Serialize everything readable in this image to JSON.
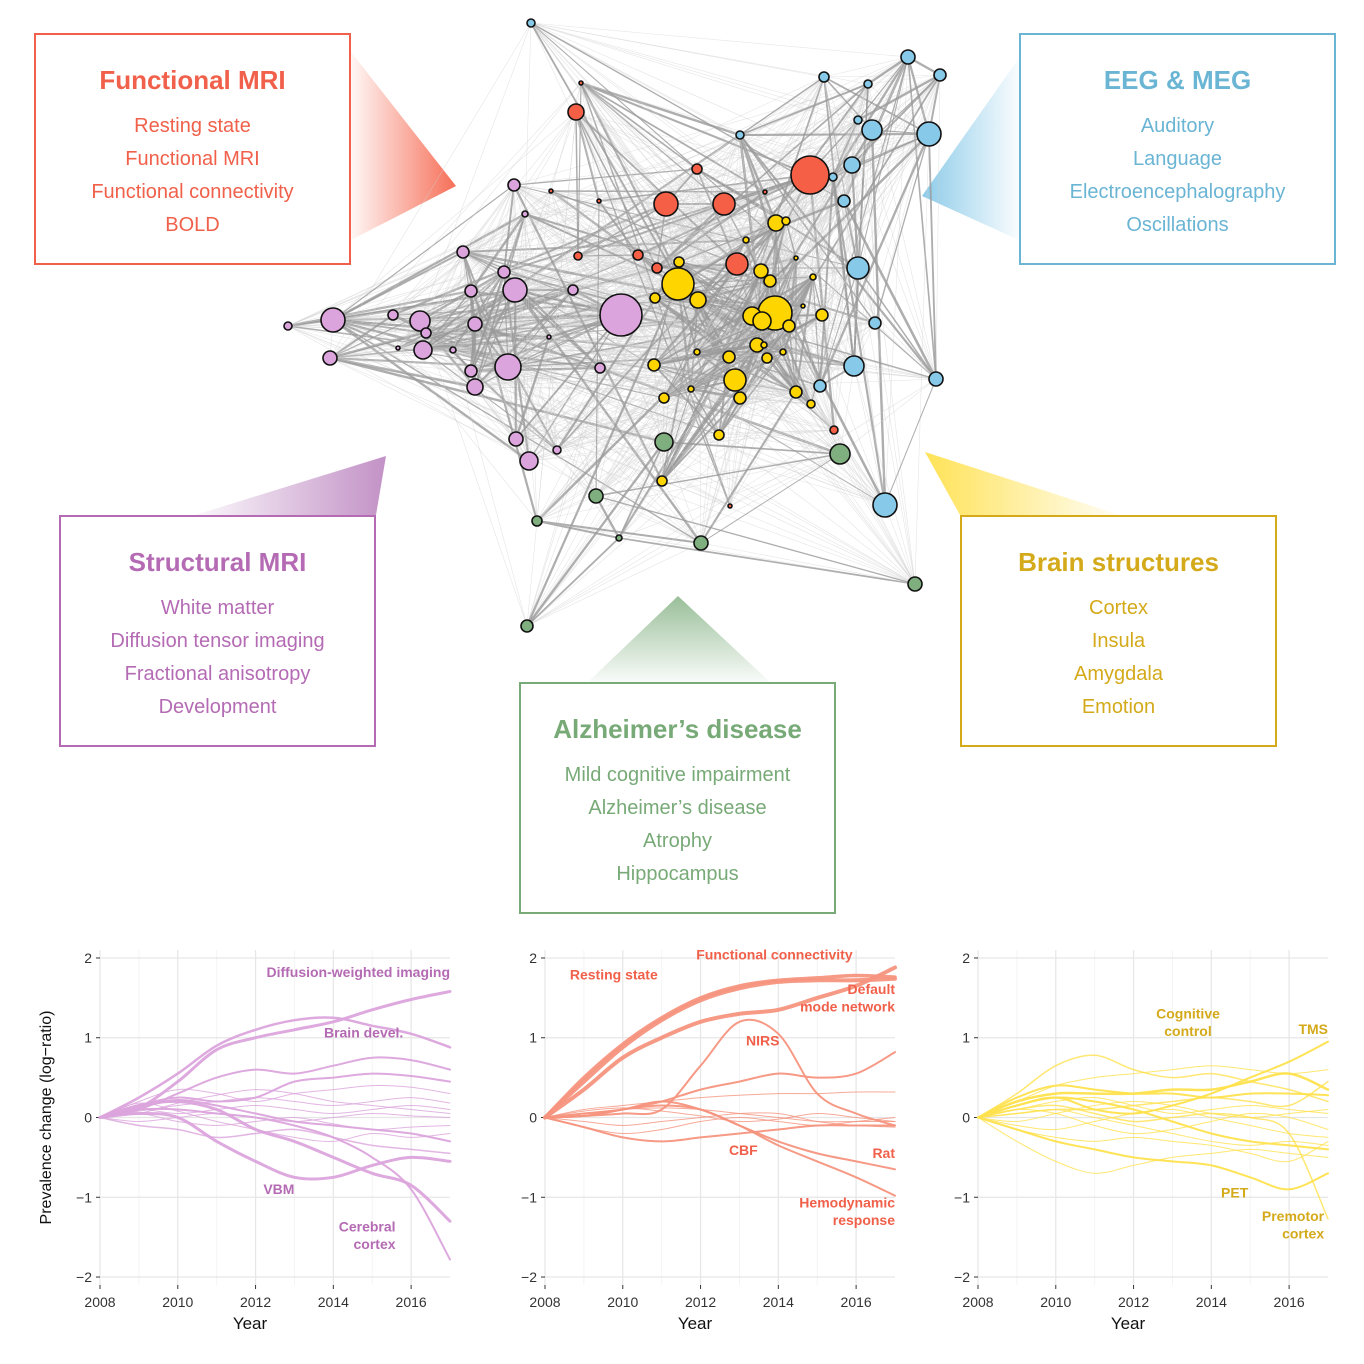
{
  "clusters": {
    "fmri": {
      "title": "Functional MRI",
      "color": "#f0604a",
      "terms": [
        "Resting state",
        "Functional MRI",
        "Functional connectivity",
        "BOLD"
      ]
    },
    "eeg": {
      "title": "EEG & MEG",
      "color": "#6ab4d4",
      "terms": [
        "Auditory",
        "Language",
        "Electroencephalography",
        "Oscillations"
      ]
    },
    "smri": {
      "title": "Structural MRI",
      "color": "#b46bb4",
      "terms": [
        "White matter",
        "Diffusion tensor imaging",
        "Fractional anisotropy",
        "Development"
      ]
    },
    "brain": {
      "title": "Brain structures",
      "color": "#d4aa1a",
      "terms": [
        "Cortex",
        "Insula",
        "Amygdala",
        "Emotion"
      ]
    },
    "ad": {
      "title": "Alzheimer’s disease",
      "color": "#78aa78",
      "terms": [
        "Mild cognitive impairment",
        "Alzheimer’s disease",
        "Atrophy",
        "Hippocampus"
      ]
    }
  },
  "node_colors": {
    "fmri": "#f55f45",
    "eeg": "#87c9e8",
    "smri": "#dba4dc",
    "brain": "#ffd500",
    "ad": "#7fae7f"
  },
  "chart_data": [
    {
      "type": "line",
      "title": "",
      "xlabel": "Year",
      "ylabel": "Prevalence change (log−ratio)",
      "xlim": [
        2008,
        2017
      ],
      "ylim": [
        -2.1,
        2.1
      ],
      "xticks": [
        2008,
        2010,
        2012,
        2014,
        2016
      ],
      "yticks": [
        -2,
        -1,
        0,
        1,
        2
      ],
      "color": "#dba4dc",
      "label_color": "#b46bb4",
      "x": [
        2008,
        2009,
        2010,
        2011,
        2012,
        2013,
        2014,
        2015,
        2016,
        2017
      ],
      "series": [
        {
          "name": "Diffusion-weighted imaging",
          "width": 3,
          "values": [
            0,
            0.12,
            0.45,
            0.85,
            1.0,
            1.1,
            1.2,
            1.35,
            1.48,
            1.58
          ]
        },
        {
          "name": "Brain devel.",
          "width": 2.5,
          "values": [
            0,
            0.25,
            0.55,
            0.9,
            1.1,
            1.22,
            1.25,
            1.15,
            1.05,
            0.88
          ]
        },
        {
          "name": "VBM",
          "width": 3,
          "values": [
            0,
            0.05,
            0.0,
            -0.3,
            -0.55,
            -0.75,
            -0.75,
            -0.6,
            -0.5,
            -0.55
          ]
        },
        {
          "name": "Cerebral cortex",
          "width": 2,
          "values": [
            0,
            0.1,
            0.1,
            0.05,
            0.0,
            -0.1,
            -0.25,
            -0.5,
            -0.9,
            -1.78
          ]
        },
        {
          "name": "",
          "width": 3,
          "values": [
            0,
            0.15,
            0.2,
            0.1,
            -0.15,
            -0.3,
            -0.5,
            -0.7,
            -0.85,
            -1.3
          ]
        },
        {
          "name": "",
          "width": 2,
          "values": [
            0,
            0.1,
            0.3,
            0.5,
            0.6,
            0.55,
            0.65,
            0.75,
            0.72,
            0.6
          ]
        },
        {
          "name": "",
          "width": 2,
          "values": [
            0,
            0.15,
            0.25,
            0.2,
            0.25,
            0.45,
            0.5,
            0.55,
            0.52,
            0.45
          ]
        },
        {
          "name": "",
          "width": 1,
          "values": [
            0,
            0.2,
            0.35,
            0.3,
            0.2,
            0.3,
            0.35,
            0.4,
            0.38,
            0.3
          ]
        },
        {
          "name": "",
          "width": 1,
          "values": [
            0,
            0.08,
            0.15,
            0.2,
            0.25,
            0.2,
            0.15,
            0.2,
            0.25,
            0.18
          ]
        },
        {
          "name": "",
          "width": 1,
          "values": [
            0,
            0.1,
            0.05,
            0.1,
            0.15,
            0.1,
            0.05,
            0.1,
            0.15,
            0.1
          ]
        },
        {
          "name": "",
          "width": 1,
          "values": [
            0,
            -0.05,
            0.0,
            0.05,
            0.0,
            -0.05,
            0.0,
            0.05,
            0.02,
            0.0
          ]
        },
        {
          "name": "",
          "width": 1,
          "values": [
            0,
            0.05,
            -0.05,
            -0.1,
            -0.05,
            0.0,
            -0.08,
            -0.15,
            -0.12,
            -0.1
          ]
        },
        {
          "name": "",
          "width": 2,
          "values": [
            0,
            0.12,
            0.22,
            0.15,
            0.05,
            -0.05,
            -0.1,
            -0.15,
            -0.2,
            -0.3
          ]
        },
        {
          "name": "",
          "width": 1.5,
          "values": [
            0,
            -0.1,
            -0.15,
            -0.25,
            -0.2,
            -0.15,
            -0.25,
            -0.35,
            -0.4,
            -0.45
          ]
        },
        {
          "name": "",
          "width": 1,
          "values": [
            0,
            0.18,
            0.08,
            -0.05,
            -0.15,
            -0.25,
            -0.3,
            -0.2,
            -0.25,
            -0.2
          ]
        },
        {
          "name": "",
          "width": 1,
          "values": [
            0,
            0.05,
            0.18,
            0.28,
            0.35,
            0.3,
            0.2,
            0.15,
            0.1,
            0.05
          ]
        }
      ],
      "annotations": [
        {
          "text": "Diffusion-weighted imaging",
          "x": 2017,
          "y": 1.76,
          "anchor": "end"
        },
        {
          "text": "Brain devel.",
          "x": 2015.8,
          "y": 1.0,
          "anchor": "end"
        },
        {
          "text": "VBM",
          "x": 2012.6,
          "y": -0.96,
          "anchor": "middle"
        },
        {
          "text": "Cerebral",
          "x": 2015.6,
          "y": -1.43,
          "anchor": "end"
        },
        {
          "text": "cortex",
          "x": 2015.6,
          "y": -1.65,
          "anchor": "end"
        }
      ]
    },
    {
      "type": "line",
      "title": "",
      "xlabel": "Year",
      "ylabel": "",
      "xlim": [
        2008,
        2017
      ],
      "ylim": [
        -2.1,
        2.1
      ],
      "xticks": [
        2008,
        2010,
        2012,
        2014,
        2016
      ],
      "yticks": [
        -2,
        -1,
        0,
        1,
        2
      ],
      "color": "#f5937e",
      "label_color": "#f0604a",
      "x": [
        2008,
        2009,
        2010,
        2011,
        2012,
        2013,
        2014,
        2015,
        2016,
        2017
      ],
      "series": [
        {
          "name": "Resting state",
          "width": 4,
          "values": [
            0,
            0.45,
            0.88,
            1.22,
            1.47,
            1.62,
            1.7,
            1.72,
            1.72,
            1.74
          ]
        },
        {
          "name": "Functional connectivity",
          "width": 4,
          "values": [
            0,
            0.35,
            0.75,
            1.0,
            1.2,
            1.3,
            1.35,
            1.5,
            1.65,
            1.88
          ]
        },
        {
          "name": "Default mode network",
          "width": 3.5,
          "values": [
            0,
            0.5,
            0.92,
            1.25,
            1.5,
            1.65,
            1.72,
            1.75,
            1.78,
            1.76
          ]
        },
        {
          "name": "NIRS",
          "width": 2,
          "values": [
            0,
            0.02,
            0.05,
            0.1,
            0.65,
            1.2,
            1.05,
            0.3,
            0.05,
            -0.1
          ]
        },
        {
          "name": "CBF",
          "width": 2,
          "values": [
            0,
            -0.12,
            -0.25,
            -0.3,
            -0.25,
            -0.2,
            -0.15,
            -0.1,
            -0.1,
            -0.1
          ]
        },
        {
          "name": "Rat",
          "width": 2,
          "values": [
            0,
            0.02,
            0.1,
            0.15,
            0.1,
            -0.1,
            -0.3,
            -0.45,
            -0.55,
            -0.65
          ]
        },
        {
          "name": "Hemodynamic response",
          "width": 2,
          "values": [
            0,
            0.05,
            0.1,
            0.2,
            0.1,
            -0.1,
            -0.35,
            -0.55,
            -0.75,
            -0.98
          ]
        },
        {
          "name": "",
          "width": 2,
          "values": [
            0,
            0.02,
            0.1,
            0.2,
            0.35,
            0.45,
            0.55,
            0.5,
            0.55,
            0.82
          ]
        },
        {
          "name": "",
          "width": 1,
          "values": [
            0,
            0.1,
            0.15,
            0.2,
            0.25,
            0.28,
            0.3,
            0.3,
            0.32,
            0.32
          ]
        },
        {
          "name": "",
          "width": 1,
          "values": [
            0,
            0.05,
            0.1,
            0.12,
            0.1,
            0.05,
            0.0,
            -0.05,
            -0.05,
            -0.05
          ]
        },
        {
          "name": "",
          "width": 1,
          "values": [
            0,
            -0.05,
            -0.1,
            -0.05,
            0.0,
            0.05,
            0.05,
            -0.05,
            -0.1,
            -0.12
          ]
        },
        {
          "name": "",
          "width": 1,
          "values": [
            0,
            0.08,
            0.12,
            0.08,
            0.02,
            -0.05,
            -0.02,
            0.05,
            0.0,
            -0.05
          ]
        },
        {
          "name": "",
          "width": 1,
          "values": [
            0,
            -0.12,
            -0.2,
            -0.15,
            -0.05,
            0.0,
            -0.05,
            -0.1,
            -0.05,
            0.0
          ]
        }
      ],
      "annotations": [
        {
          "text": "Functional connectivity",
          "x": 2013.9,
          "y": 1.98,
          "anchor": "middle"
        },
        {
          "text": "Resting state",
          "x": 2010.9,
          "y": 1.73,
          "anchor": "end"
        },
        {
          "text": "Default",
          "x": 2017,
          "y": 1.55,
          "anchor": "end"
        },
        {
          "text": "mode network",
          "x": 2017,
          "y": 1.33,
          "anchor": "end"
        },
        {
          "text": "NIRS",
          "x": 2013.6,
          "y": 0.9,
          "anchor": "middle"
        },
        {
          "text": "CBF",
          "x": 2013.1,
          "y": -0.47,
          "anchor": "middle"
        },
        {
          "text": "Rat",
          "x": 2017,
          "y": -0.51,
          "anchor": "end"
        },
        {
          "text": "Hemodynamic",
          "x": 2017,
          "y": -1.13,
          "anchor": "end"
        },
        {
          "text": "response",
          "x": 2017,
          "y": -1.35,
          "anchor": "end"
        }
      ]
    },
    {
      "type": "line",
      "title": "",
      "xlabel": "Year",
      "ylabel": "",
      "xlim": [
        2008,
        2017
      ],
      "ylim": [
        -2.1,
        2.1
      ],
      "xticks": [
        2008,
        2010,
        2012,
        2014,
        2016
      ],
      "yticks": [
        -2,
        -1,
        0,
        1,
        2
      ],
      "color": "#ffe14d",
      "label_color": "#d4aa1a",
      "x": [
        2008,
        2009,
        2010,
        2011,
        2012,
        2013,
        2014,
        2015,
        2016,
        2017
      ],
      "series": [
        {
          "name": "Cognitive control",
          "width": 2.5,
          "values": [
            0,
            0.2,
            0.3,
            0.3,
            0.3,
            0.35,
            0.35,
            0.45,
            0.55,
            0.35
          ]
        },
        {
          "name": "TMS",
          "width": 2,
          "values": [
            0,
            0.15,
            0.25,
            0.1,
            0.05,
            0.15,
            0.3,
            0.5,
            0.7,
            0.95
          ]
        },
        {
          "name": "PET",
          "width": 2,
          "values": [
            0,
            -0.15,
            -0.3,
            -0.4,
            -0.5,
            -0.55,
            -0.6,
            -0.75,
            -0.9,
            -0.7
          ]
        },
        {
          "name": "Premotor cortex",
          "width": 1.5,
          "values": [
            0,
            0.1,
            0.15,
            0.05,
            -0.05,
            0.0,
            0.05,
            0.0,
            -0.2,
            -1.27
          ]
        },
        {
          "name": "",
          "width": 1.5,
          "values": [
            0,
            0.3,
            0.65,
            0.78,
            0.6,
            0.5,
            0.55,
            0.45,
            0.35,
            0.2
          ]
        },
        {
          "name": "",
          "width": 2,
          "values": [
            0,
            0.25,
            0.4,
            0.35,
            0.3,
            0.3,
            0.25,
            0.3,
            0.3,
            0.28
          ]
        },
        {
          "name": "",
          "width": 1,
          "values": [
            0,
            -0.3,
            -0.55,
            -0.7,
            -0.6,
            -0.5,
            -0.45,
            -0.4,
            -0.45,
            -0.5
          ]
        },
        {
          "name": "",
          "width": 1,
          "values": [
            0,
            0.1,
            0.2,
            0.25,
            0.15,
            0.05,
            0.1,
            0.15,
            0.1,
            0.05
          ]
        },
        {
          "name": "",
          "width": 1,
          "values": [
            0,
            -0.1,
            -0.15,
            -0.05,
            0.05,
            0.1,
            0.0,
            -0.1,
            -0.2,
            -0.25
          ]
        },
        {
          "name": "",
          "width": 2,
          "values": [
            0,
            0.15,
            0.25,
            0.2,
            0.1,
            -0.05,
            -0.2,
            -0.3,
            -0.35,
            -0.4
          ]
        },
        {
          "name": "",
          "width": 1,
          "values": [
            0,
            0.05,
            0.1,
            0.0,
            -0.1,
            -0.2,
            -0.3,
            -0.35,
            -0.3,
            -0.35
          ]
        },
        {
          "name": "",
          "width": 1,
          "values": [
            0,
            0.2,
            0.4,
            0.5,
            0.55,
            0.6,
            0.65,
            0.6,
            0.55,
            0.6
          ]
        },
        {
          "name": "",
          "width": 1,
          "values": [
            0,
            -0.05,
            0.05,
            0.15,
            0.2,
            0.15,
            0.05,
            0.0,
            0.05,
            0.1
          ]
        },
        {
          "name": "",
          "width": 1,
          "values": [
            0,
            0.1,
            0.05,
            -0.1,
            -0.2,
            -0.15,
            -0.05,
            0.05,
            0.0,
            -0.15
          ]
        },
        {
          "name": "",
          "width": 1.5,
          "values": [
            0,
            0.05,
            0.1,
            0.1,
            0.15,
            0.2,
            0.25,
            0.2,
            0.15,
            0.45
          ]
        },
        {
          "name": "",
          "width": 1,
          "values": [
            0,
            -0.15,
            -0.25,
            -0.3,
            -0.25,
            -0.3,
            -0.35,
            -0.45,
            -0.55,
            -0.3
          ]
        }
      ],
      "annotations": [
        {
          "text": "Cognitive",
          "x": 2013.4,
          "y": 1.24,
          "anchor": "middle"
        },
        {
          "text": "control",
          "x": 2013.4,
          "y": 1.02,
          "anchor": "middle"
        },
        {
          "text": "TMS",
          "x": 2017,
          "y": 1.05,
          "anchor": "end"
        },
        {
          "text": "PET",
          "x": 2014.6,
          "y": -1.0,
          "anchor": "middle"
        },
        {
          "text": "Premotor",
          "x": 2016.9,
          "y": -1.3,
          "anchor": "end"
        },
        {
          "text": "cortex",
          "x": 2016.9,
          "y": -1.52,
          "anchor": "end"
        }
      ]
    }
  ]
}
